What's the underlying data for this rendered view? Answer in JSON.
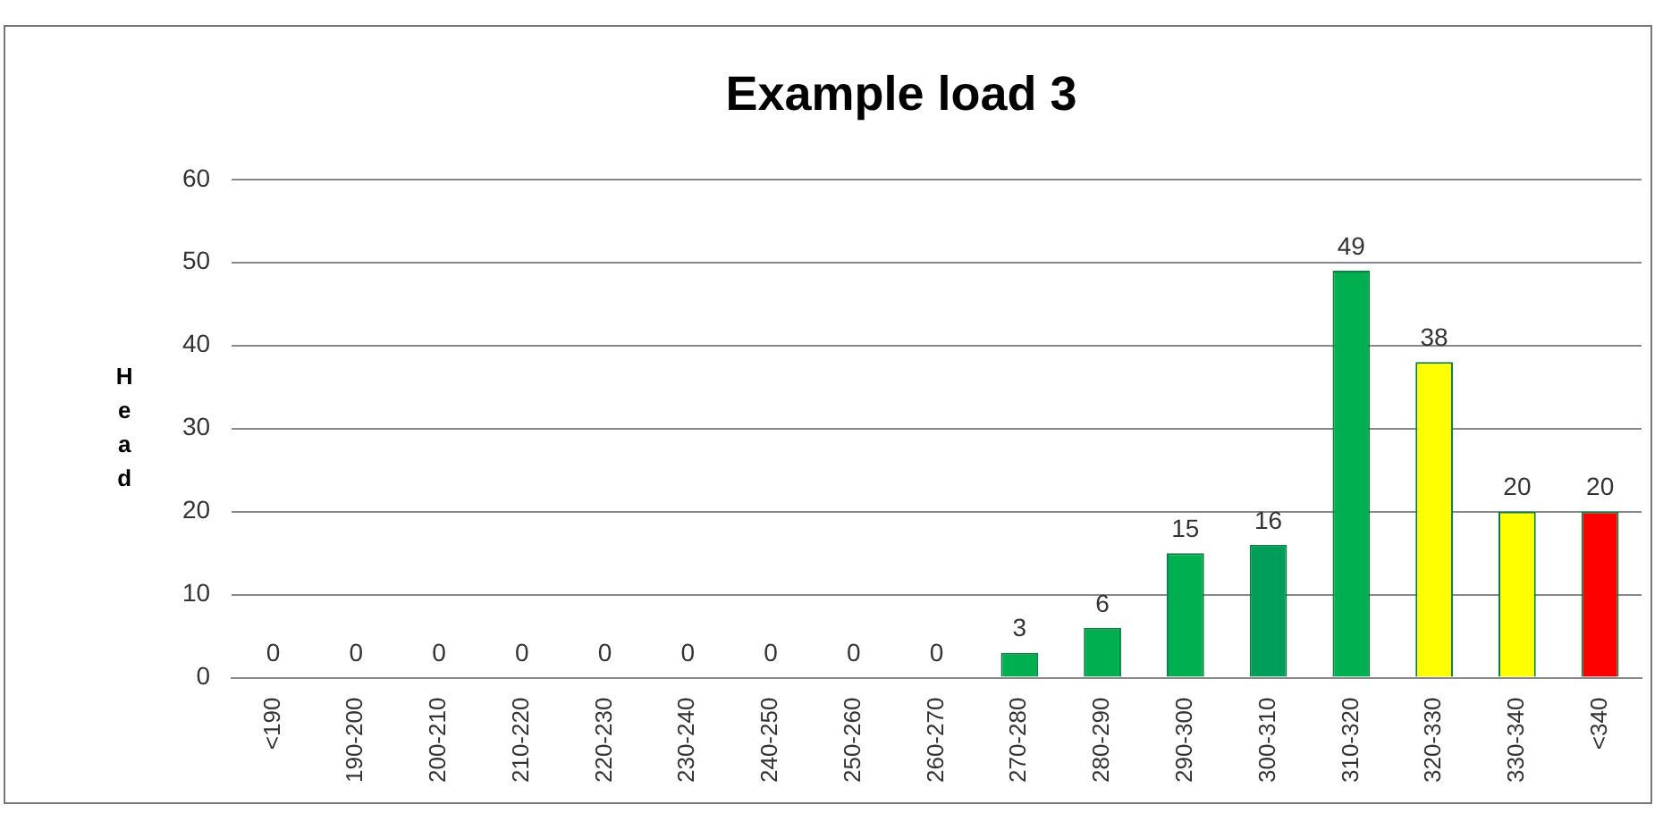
{
  "chart_data": {
    "type": "bar",
    "title": "Example load 3",
    "ylabel": "Head",
    "categories": [
      "<190",
      "190-200",
      "200-210",
      "210-220",
      "220-230",
      "230-240",
      "240-250",
      "250-260",
      "260-270",
      "270-280",
      "280-290",
      "290-300",
      "300-310",
      "310-320",
      "320-330",
      "330-340",
      "<340"
    ],
    "values": [
      0,
      0,
      0,
      0,
      0,
      0,
      0,
      0,
      0,
      3,
      6,
      15,
      16,
      49,
      38,
      20,
      20
    ],
    "colors": [
      "#00b050",
      "#00b050",
      "#00b050",
      "#00b050",
      "#00b050",
      "#00b050",
      "#00b050",
      "#00b050",
      "#00b050",
      "#00b050",
      "#00b050",
      "#00b050",
      "#009e5a",
      "#00b050",
      "#ffff00",
      "#ffff00",
      "#ff0000"
    ],
    "ylim": [
      0,
      60
    ],
    "yticks": [
      0,
      10,
      20,
      30,
      40,
      50,
      60
    ],
    "grid": "y",
    "data_labels": true,
    "legend": false
  }
}
